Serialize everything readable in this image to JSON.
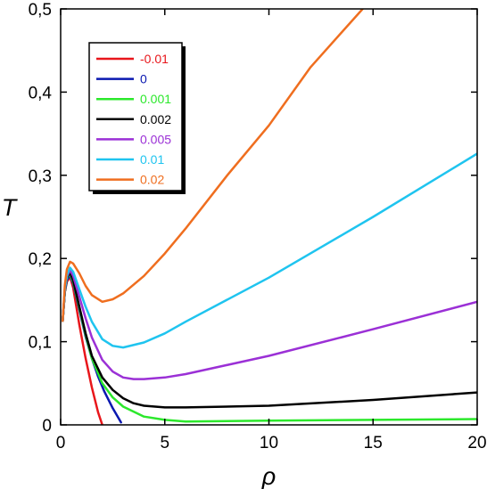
{
  "chart_data": {
    "type": "line",
    "xlabel": "ρ",
    "ylabel": "T",
    "xlim": [
      0,
      20
    ],
    "ylim": [
      0,
      0.5
    ],
    "x_ticks": [
      "0",
      "5",
      "10",
      "15",
      "20"
    ],
    "y_ticks": [
      "0",
      "0,1",
      "0,2",
      "0,3",
      "0,4",
      "0,5"
    ],
    "grid": false,
    "legend_position": "top-left",
    "series": [
      {
        "name": "-0.01",
        "color": "#e8161b",
        "x": [
          0.1,
          0.2,
          0.3,
          0.45,
          0.6,
          0.9,
          1.2,
          1.5,
          1.8,
          2.0
        ],
        "y": [
          0.125,
          0.16,
          0.172,
          0.178,
          0.165,
          0.12,
          0.08,
          0.045,
          0.015,
          0.0
        ]
      },
      {
        "name": "0",
        "color": "#0a18b0",
        "x": [
          0.1,
          0.2,
          0.3,
          0.45,
          0.6,
          0.9,
          1.2,
          1.5,
          1.8,
          2.1,
          2.5,
          2.9
        ],
        "y": [
          0.125,
          0.16,
          0.174,
          0.18,
          0.17,
          0.138,
          0.106,
          0.08,
          0.058,
          0.04,
          0.02,
          0.003
        ]
      },
      {
        "name": "0.001",
        "color": "#2ce82c",
        "x": [
          0.1,
          0.2,
          0.3,
          0.45,
          0.6,
          0.9,
          1.2,
          1.5,
          2.0,
          2.5,
          3.0,
          4.0,
          5.0,
          6.0,
          10.0,
          15.0,
          20.0
        ],
        "y": [
          0.125,
          0.16,
          0.176,
          0.182,
          0.172,
          0.14,
          0.108,
          0.08,
          0.05,
          0.033,
          0.022,
          0.01,
          0.006,
          0.004,
          0.005,
          0.006,
          0.007
        ]
      },
      {
        "name": "0.002",
        "color": "#000000",
        "x": [
          0.1,
          0.2,
          0.3,
          0.45,
          0.6,
          0.9,
          1.2,
          1.5,
          2.0,
          2.5,
          3.0,
          3.5,
          4.0,
          5.0,
          6.0,
          10.0,
          15.0,
          20.0
        ],
        "y": [
          0.125,
          0.16,
          0.177,
          0.183,
          0.174,
          0.142,
          0.11,
          0.083,
          0.057,
          0.042,
          0.032,
          0.026,
          0.023,
          0.021,
          0.021,
          0.023,
          0.03,
          0.039
        ]
      },
      {
        "name": "0.005",
        "color": "#9b30d6",
        "x": [
          0.1,
          0.2,
          0.3,
          0.45,
          0.6,
          0.9,
          1.2,
          1.5,
          2.0,
          2.5,
          3.0,
          3.5,
          4.0,
          5.0,
          6.0,
          10.0,
          15.0,
          20.0
        ],
        "y": [
          0.125,
          0.162,
          0.178,
          0.186,
          0.179,
          0.154,
          0.128,
          0.105,
          0.078,
          0.064,
          0.057,
          0.055,
          0.055,
          0.057,
          0.061,
          0.083,
          0.115,
          0.148
        ]
      },
      {
        "name": "0.01",
        "color": "#1fc4ef",
        "x": [
          0.1,
          0.2,
          0.3,
          0.45,
          0.6,
          0.9,
          1.2,
          1.5,
          2.0,
          2.5,
          3.0,
          4.0,
          5.0,
          6.0,
          10.0,
          15.0,
          20.0
        ],
        "y": [
          0.125,
          0.163,
          0.18,
          0.189,
          0.184,
          0.163,
          0.142,
          0.124,
          0.103,
          0.095,
          0.093,
          0.099,
          0.11,
          0.124,
          0.177,
          0.25,
          0.326
        ]
      },
      {
        "name": "0.02",
        "color": "#ef6e1f",
        "x": [
          0.1,
          0.2,
          0.3,
          0.45,
          0.6,
          0.9,
          1.2,
          1.5,
          2.0,
          2.5,
          3.0,
          4.0,
          5.0,
          6.0,
          8.0,
          10.0,
          12.0,
          14.5
        ],
        "y": [
          0.125,
          0.168,
          0.187,
          0.196,
          0.194,
          0.182,
          0.167,
          0.156,
          0.148,
          0.151,
          0.158,
          0.179,
          0.206,
          0.236,
          0.3,
          0.36,
          0.43,
          0.5
        ]
      }
    ]
  }
}
